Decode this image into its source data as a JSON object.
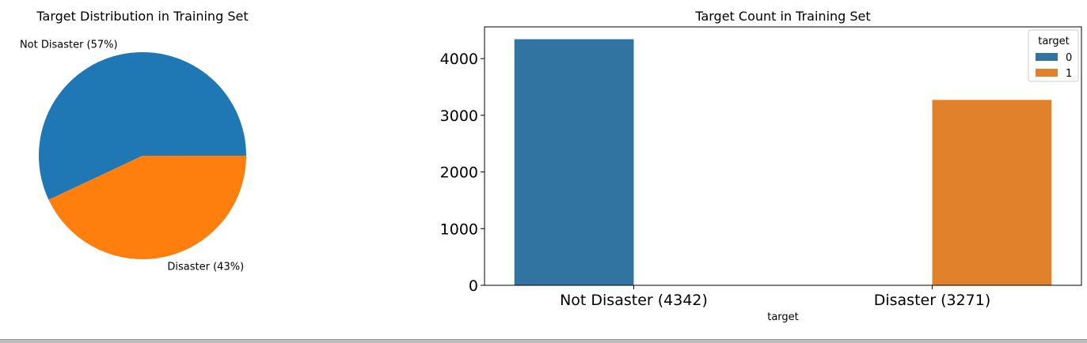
{
  "chart_data": [
    {
      "type": "pie",
      "title": "Target Distribution in Training Set",
      "slices": [
        {
          "label": "Not Disaster (57%)",
          "value": 57,
          "color": "#1f77b4"
        },
        {
          "label": "Disaster (43%)",
          "value": 43,
          "color": "#ff7f0e"
        }
      ]
    },
    {
      "type": "bar",
      "title": "Target Count in Training Set",
      "categories": [
        "Not Disaster (4342)",
        "Disaster (3271)"
      ],
      "xlabel": "target",
      "ylabel": "",
      "ylim": [
        0,
        4560
      ],
      "yticks": [
        0,
        1000,
        2000,
        3000,
        4000
      ],
      "legend": {
        "title": "target",
        "placement": "top-right"
      },
      "series": [
        {
          "name": "0",
          "color": "#3274a1",
          "values": [
            4342,
            0
          ]
        },
        {
          "name": "1",
          "color": "#e1812c",
          "values": [
            0,
            3271
          ]
        }
      ]
    }
  ]
}
